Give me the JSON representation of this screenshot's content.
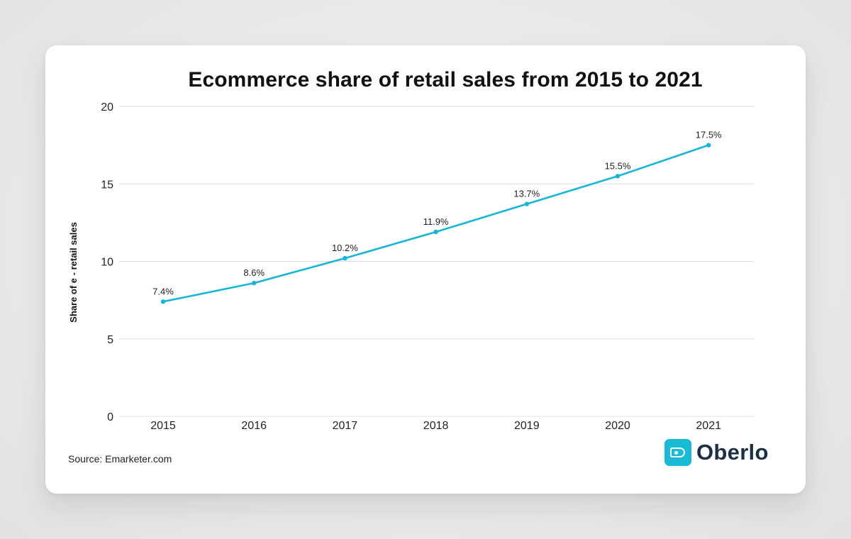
{
  "chart_data": {
    "type": "line",
    "title": "Ecommerce share of retail sales from 2015 to 2021",
    "xlabel": "",
    "ylabel": "Share of e - retail sales",
    "x": [
      "2015",
      "2016",
      "2017",
      "2018",
      "2019",
      "2020",
      "2021"
    ],
    "series": [
      {
        "values": [
          7.4,
          8.6,
          10.2,
          11.9,
          13.7,
          15.5,
          17.5
        ],
        "labels": [
          "7.4%",
          "8.6%",
          "10.2%",
          "11.9%",
          "13.7%",
          "15.5%",
          "17.5%"
        ],
        "color": "#19b5d6"
      }
    ],
    "ylim": [
      0,
      20
    ],
    "yticks": [
      0,
      5,
      10,
      15,
      20
    ],
    "grid": true,
    "legend": "none"
  },
  "source": "Source: Emarketer.com",
  "logo": {
    "text": "Oberlo",
    "icon": "price-tag-icon",
    "color": "#19bad6"
  }
}
